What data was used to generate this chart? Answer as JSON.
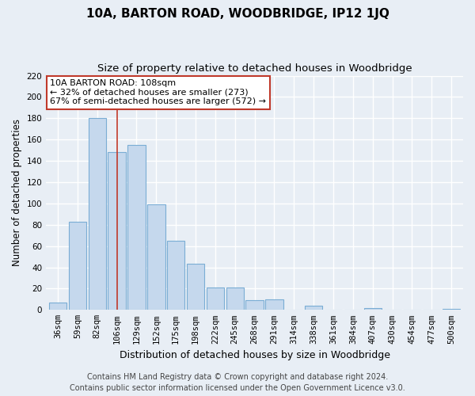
{
  "title": "10A, BARTON ROAD, WOODBRIDGE, IP12 1JQ",
  "subtitle": "Size of property relative to detached houses in Woodbridge",
  "xlabel": "Distribution of detached houses by size in Woodbridge",
  "ylabel": "Number of detached properties",
  "bar_labels": [
    "36sqm",
    "59sqm",
    "82sqm",
    "106sqm",
    "129sqm",
    "152sqm",
    "175sqm",
    "198sqm",
    "222sqm",
    "245sqm",
    "268sqm",
    "291sqm",
    "314sqm",
    "338sqm",
    "361sqm",
    "384sqm",
    "407sqm",
    "430sqm",
    "454sqm",
    "477sqm",
    "500sqm"
  ],
  "bar_values": [
    7,
    83,
    180,
    148,
    155,
    99,
    65,
    43,
    21,
    21,
    9,
    10,
    0,
    4,
    0,
    0,
    2,
    0,
    0,
    0,
    1
  ],
  "bar_color": "#c5d8ed",
  "bar_edge_color": "#7aadd4",
  "highlight_bar_index": 3,
  "vline_color": "#c0392b",
  "annotation_box_text": "10A BARTON ROAD: 108sqm\n← 32% of detached houses are smaller (273)\n67% of semi-detached houses are larger (572) →",
  "annotation_box_edge_color": "#c0392b",
  "annotation_box_bg_color": "#ffffff",
  "ylim": [
    0,
    220
  ],
  "yticks": [
    0,
    20,
    40,
    60,
    80,
    100,
    120,
    140,
    160,
    180,
    200,
    220
  ],
  "background_color": "#e8eef5",
  "plot_bg_color": "#e8eef5",
  "grid_color": "#ffffff",
  "footer_line1": "Contains HM Land Registry data © Crown copyright and database right 2024.",
  "footer_line2": "Contains public sector information licensed under the Open Government Licence v3.0.",
  "title_fontsize": 11,
  "subtitle_fontsize": 9.5,
  "xlabel_fontsize": 9,
  "ylabel_fontsize": 8.5,
  "tick_fontsize": 7.5,
  "footer_fontsize": 7
}
